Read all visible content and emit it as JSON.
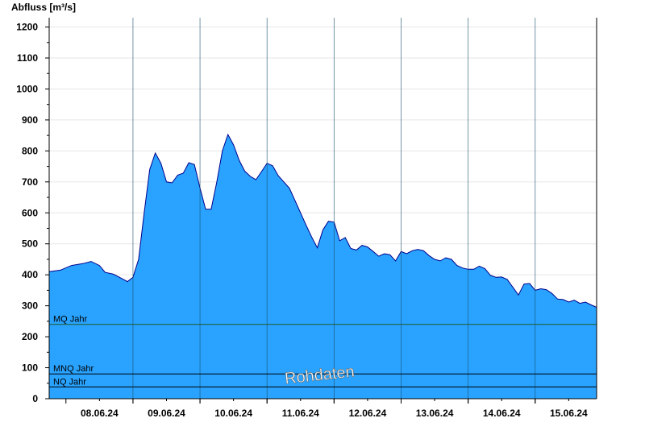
{
  "chart_data": {
    "type": "area",
    "ylabel": "Abfluss [m³/s]",
    "ylim": [
      0,
      1230
    ],
    "yticks": [
      0,
      100,
      200,
      300,
      400,
      500,
      600,
      700,
      800,
      900,
      1000,
      1100,
      1200
    ],
    "grid": true,
    "x_range_days": [
      "07.06.24 18:00",
      "15.06.24 22:00"
    ],
    "xtick_labels": [
      "08.06.24",
      "09.06.24",
      "10.06.24",
      "11.06.24",
      "12.06.24",
      "13.06.24",
      "14.06.24",
      "15.06.24"
    ],
    "series": [
      {
        "fill_color": "#29a3ff",
        "line_color": "#00008b",
        "points": [
          [
            "07.06.24 18:00",
            410
          ],
          [
            "07.06.24 22:00",
            415
          ],
          [
            "08.06.24 02:00",
            430
          ],
          [
            "08.06.24 06:00",
            436
          ],
          [
            "08.06.24 09:00",
            443
          ],
          [
            "08.06.24 12:00",
            430
          ],
          [
            "08.06.24 14:00",
            408
          ],
          [
            "08.06.24 17:00",
            402
          ],
          [
            "08.06.24 20:00",
            388
          ],
          [
            "08.06.24 22:00",
            378
          ],
          [
            "09.06.24 00:00",
            392
          ],
          [
            "09.06.24 02:00",
            450
          ],
          [
            "09.06.24 04:00",
            600
          ],
          [
            "09.06.24 06:00",
            740
          ],
          [
            "09.06.24 08:00",
            793
          ],
          [
            "09.06.24 10:00",
            760
          ],
          [
            "09.06.24 12:00",
            700
          ],
          [
            "09.06.24 14:00",
            697
          ],
          [
            "09.06.24 16:00",
            722
          ],
          [
            "09.06.24 18:00",
            728
          ],
          [
            "09.06.24 20:00",
            762
          ],
          [
            "09.06.24 22:00",
            756
          ],
          [
            "10.06.24 00:00",
            680
          ],
          [
            "10.06.24 02:00",
            612
          ],
          [
            "10.06.24 04:00",
            612
          ],
          [
            "10.06.24 06:00",
            700
          ],
          [
            "10.06.24 08:00",
            800
          ],
          [
            "10.06.24 10:00",
            853
          ],
          [
            "10.06.24 12:00",
            820
          ],
          [
            "10.06.24 14:00",
            770
          ],
          [
            "10.06.24 16:00",
            735
          ],
          [
            "10.06.24 18:00",
            718
          ],
          [
            "10.06.24 20:00",
            707
          ],
          [
            "10.06.24 22:00",
            733
          ],
          [
            "11.06.24 00:00",
            760
          ],
          [
            "11.06.24 02:00",
            752
          ],
          [
            "11.06.24 04:00",
            720
          ],
          [
            "11.06.24 06:00",
            700
          ],
          [
            "11.06.24 08:00",
            680
          ],
          [
            "11.06.24 10:00",
            640
          ],
          [
            "11.06.24 12:00",
            600
          ],
          [
            "11.06.24 14:00",
            560
          ],
          [
            "11.06.24 16:00",
            522
          ],
          [
            "11.06.24 18:00",
            487
          ],
          [
            "11.06.24 20:00",
            545
          ],
          [
            "11.06.24 22:00",
            573
          ],
          [
            "12.06.24 00:00",
            570
          ],
          [
            "12.06.24 02:00",
            510
          ],
          [
            "12.06.24 04:00",
            520
          ],
          [
            "12.06.24 06:00",
            485
          ],
          [
            "12.06.24 08:00",
            480
          ],
          [
            "12.06.24 10:00",
            495
          ],
          [
            "12.06.24 12:00",
            490
          ],
          [
            "12.06.24 14:00",
            475
          ],
          [
            "12.06.24 16:00",
            460
          ],
          [
            "12.06.24 18:00",
            468
          ],
          [
            "12.06.24 20:00",
            465
          ],
          [
            "12.06.24 22:00",
            445
          ],
          [
            "13.06.24 00:00",
            475
          ],
          [
            "13.06.24 02:00",
            468
          ],
          [
            "13.06.24 04:00",
            478
          ],
          [
            "13.06.24 06:00",
            482
          ],
          [
            "13.06.24 08:00",
            478
          ],
          [
            "13.06.24 10:00",
            462
          ],
          [
            "13.06.24 12:00",
            450
          ],
          [
            "13.06.24 14:00",
            445
          ],
          [
            "13.06.24 16:00",
            455
          ],
          [
            "13.06.24 18:00",
            450
          ],
          [
            "13.06.24 20:00",
            430
          ],
          [
            "13.06.24 22:00",
            422
          ],
          [
            "14.06.24 00:00",
            418
          ],
          [
            "14.06.24 02:00",
            418
          ],
          [
            "14.06.24 04:00",
            428
          ],
          [
            "14.06.24 06:00",
            420
          ],
          [
            "14.06.24 08:00",
            398
          ],
          [
            "14.06.24 10:00",
            392
          ],
          [
            "14.06.24 12:00",
            393
          ],
          [
            "14.06.24 14:00",
            385
          ],
          [
            "14.06.24 16:00",
            360
          ],
          [
            "14.06.24 18:00",
            335
          ],
          [
            "14.06.24 20:00",
            370
          ],
          [
            "14.06.24 22:00",
            372
          ],
          [
            "15.06.24 00:00",
            350
          ],
          [
            "15.06.24 02:00",
            355
          ],
          [
            "15.06.24 04:00",
            352
          ],
          [
            "15.06.24 06:00",
            340
          ],
          [
            "15.06.24 08:00",
            322
          ],
          [
            "15.06.24 10:00",
            320
          ],
          [
            "15.06.24 12:00",
            312
          ],
          [
            "15.06.24 14:00",
            318
          ],
          [
            "15.06.24 16:00",
            308
          ],
          [
            "15.06.24 18:00",
            312
          ],
          [
            "15.06.24 20:00",
            303
          ],
          [
            "15.06.24 22:00",
            295
          ]
        ]
      }
    ],
    "reference_lines": [
      {
        "label": "MQ Jahr",
        "value": 240,
        "color": "#1e5a2a"
      },
      {
        "label": "MNQ Jahr",
        "value": 80,
        "color": "#000000"
      },
      {
        "label": "NQ Jahr",
        "value": 38,
        "color": "#000000"
      }
    ],
    "watermark": "Rohdaten"
  }
}
